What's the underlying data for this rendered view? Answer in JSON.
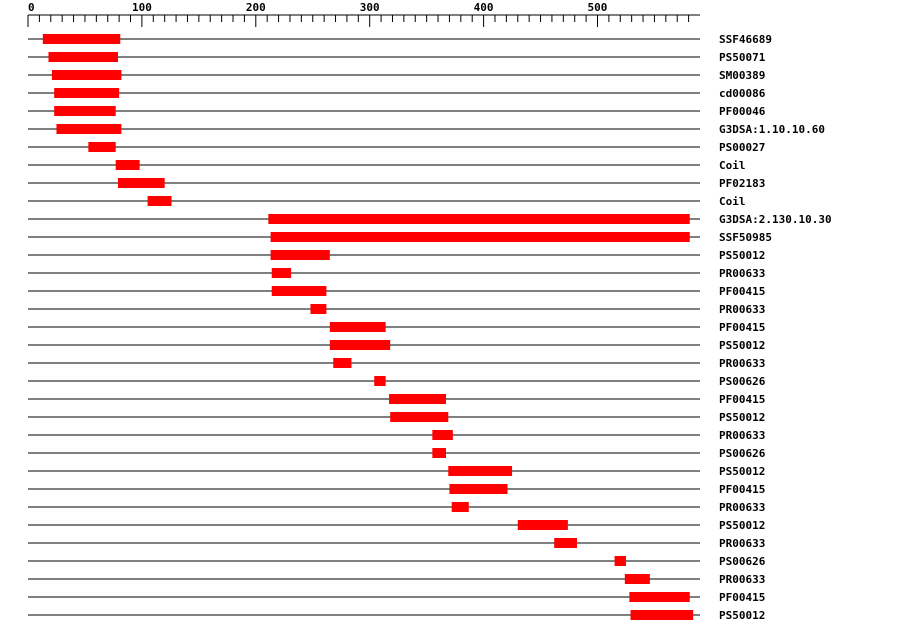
{
  "chart_data": {
    "type": "range_bar",
    "categories": [
      "SSF46689",
      "PS50071",
      "SM00389",
      "cd00086",
      "PF00046",
      "G3DSA:1.10.10.60",
      "PS00027",
      "Coil",
      "PF02183",
      "Coil",
      "G3DSA:2.130.10.30",
      "SSF50985",
      "PS50012",
      "PR00633",
      "PF00415",
      "PR00633",
      "PF00415",
      "PS50012",
      "PR00633",
      "PS00626",
      "PF00415",
      "PS50012",
      "PR00633",
      "PS00626",
      "PS50012",
      "PF00415",
      "PR00633",
      "PS50012",
      "PR00633",
      "PS00626",
      "PR00633",
      "PF00415",
      "PS50012"
    ],
    "starts": [
      13,
      18,
      21,
      23,
      23,
      25,
      53,
      77,
      79,
      105,
      211,
      213,
      213,
      214,
      214,
      248,
      265,
      265,
      268,
      304,
      317,
      318,
      355,
      355,
      369,
      370,
      372,
      430,
      462,
      515,
      524,
      528,
      529
    ],
    "ends": [
      81,
      79,
      82,
      80,
      77,
      82,
      77,
      98,
      120,
      126,
      581,
      581,
      265,
      231,
      262,
      262,
      314,
      318,
      284,
      314,
      367,
      369,
      373,
      367,
      425,
      421,
      387,
      474,
      482,
      525,
      546,
      581,
      584
    ],
    "color": "#ff0000",
    "xlim": [
      0,
      590
    ],
    "xticks": [
      0,
      100,
      200,
      300,
      400,
      500
    ],
    "minor_xticks": [
      10,
      20,
      30,
      40,
      50,
      60,
      70,
      80,
      90,
      110,
      120,
      130,
      140,
      150,
      160,
      170,
      180,
      190,
      210,
      220,
      230,
      240,
      250,
      260,
      270,
      280,
      290,
      310,
      320,
      330,
      340,
      350,
      360,
      370,
      380,
      390,
      410,
      420,
      430,
      440,
      450,
      460,
      470,
      480,
      490,
      510,
      520,
      530,
      540,
      550,
      560,
      570,
      580
    ]
  }
}
